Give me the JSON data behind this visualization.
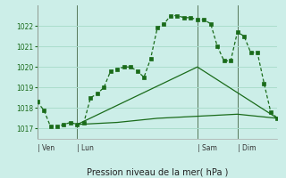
{
  "title": "Pression niveau de la mer( hPa )",
  "bg_color": "#cceee8",
  "grid_color": "#aaddcc",
  "line_color": "#1a6b1a",
  "ylim": [
    1016.5,
    1023.0
  ],
  "xlim": [
    0,
    72
  ],
  "yticks": [
    1017,
    1018,
    1019,
    1020,
    1021,
    1022
  ],
  "day_positions": [
    0,
    12,
    48,
    60
  ],
  "day_names": [
    "Ven",
    "Lun",
    "Sam",
    "Dim"
  ],
  "line1_x": [
    0,
    2,
    4,
    6,
    8,
    10,
    12,
    14,
    16,
    18,
    20,
    22,
    24,
    26,
    28,
    30,
    32,
    34,
    36,
    38,
    40,
    42,
    44,
    46,
    48,
    50,
    52,
    54,
    56,
    58,
    60,
    62,
    64,
    66,
    68,
    70,
    72
  ],
  "line1_y": [
    1018.3,
    1017.9,
    1017.1,
    1017.1,
    1017.2,
    1017.3,
    1017.2,
    1017.3,
    1018.5,
    1018.7,
    1019.0,
    1019.8,
    1019.9,
    1020.0,
    1020.0,
    1019.8,
    1019.5,
    1020.4,
    1021.9,
    1022.1,
    1022.5,
    1022.5,
    1022.4,
    1022.4,
    1022.3,
    1022.3,
    1022.1,
    1021.0,
    1020.3,
    1020.3,
    1021.7,
    1021.5,
    1020.7,
    1020.7,
    1019.2,
    1017.8,
    1017.5
  ],
  "line2_x": [
    12,
    24,
    36,
    48,
    60,
    72
  ],
  "line2_y": [
    1017.2,
    1017.3,
    1017.5,
    1017.6,
    1017.7,
    1017.5
  ],
  "line3_x": [
    12,
    48,
    72
  ],
  "line3_y": [
    1017.2,
    1020.0,
    1017.5
  ]
}
